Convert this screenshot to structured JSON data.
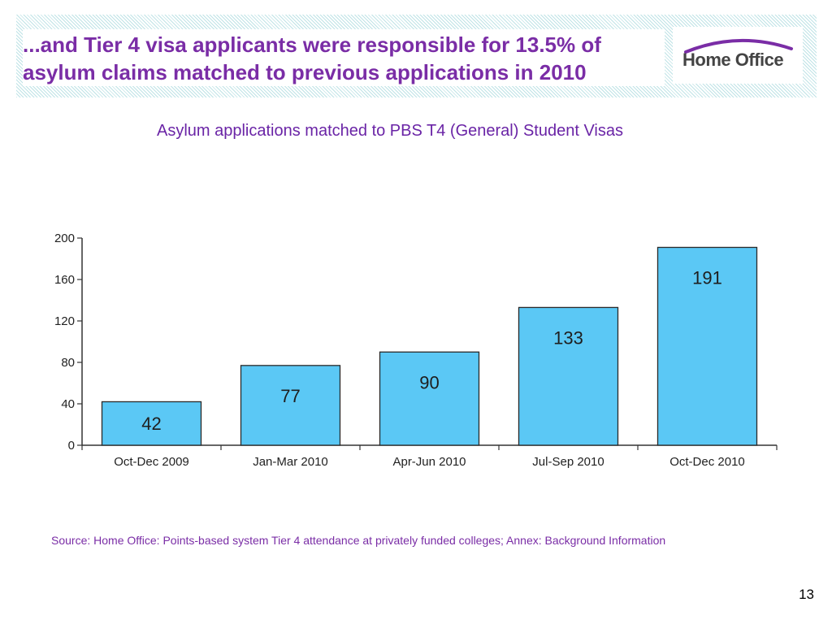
{
  "slide": {
    "title_line1": "...and Tier 4 visa applicants were responsible for 13.5% of",
    "title_line2": "asylum claims matched to previous applications in 2010",
    "logo_text": "Home Office",
    "source": "Source: Home Office: Points-based system Tier 4 attendance at privately funded colleges; Annex: Background Information",
    "page_number": "13",
    "colors": {
      "title": "#7a2da6",
      "bar_fill": "#5bc8f5",
      "bar_stroke": "#2a2a2a",
      "header_hatch": "#bfe3e6",
      "logo_arc": "#7a2da6"
    }
  },
  "chart_data": {
    "type": "bar",
    "title": "Asylum applications matched to PBS T4 (General) Student Visas",
    "categories": [
      "Oct-Dec 2009",
      "Jan-Mar 2010",
      "Apr-Jun 2010",
      "Jul-Sep 2010",
      "Oct-Dec 2010"
    ],
    "values": [
      42,
      77,
      90,
      133,
      191
    ],
    "data_labels": [
      "42",
      "77",
      "90",
      "133",
      "191"
    ],
    "ylim": [
      0,
      200
    ],
    "yticks": [
      "0",
      "40",
      "80",
      "120",
      "160",
      "200"
    ],
    "xlabel": "",
    "ylabel": "",
    "grid": false,
    "legend": "none"
  }
}
